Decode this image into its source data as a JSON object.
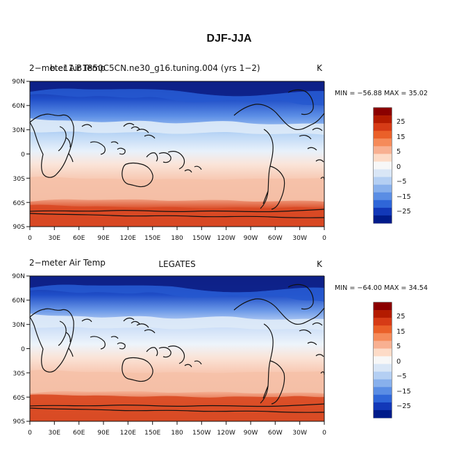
{
  "figure": {
    "title": "DJF-JJA"
  },
  "common": {
    "unit": "K",
    "lat_labels": [
      "90N",
      "60N",
      "30N",
      "0",
      "30S",
      "60S",
      "90S"
    ],
    "lon_labels": [
      "0",
      "30E",
      "60E",
      "90E",
      "120E",
      "150E",
      "180",
      "150W",
      "120W",
      "90W",
      "60W",
      "30W",
      "0"
    ],
    "colorbar_labels": [
      "25",
      "15",
      "5",
      "0",
      "−5",
      "−15",
      "−25"
    ],
    "colorbar_colors": [
      "#8b0000",
      "#b31b00",
      "#d63b16",
      "#ea6029",
      "#f58b5a",
      "#f8b091",
      "#fddbc7",
      "#f7f7f7",
      "#d9e6f6",
      "#b4cff3",
      "#88b0ec",
      "#5a8de4",
      "#2f66d8",
      "#1238b8",
      "#001b8a"
    ]
  },
  "panels": [
    {
      "left_title": "2−meter Air Temp",
      "overlap_title": "b.e11.B1850C5CN.ne30_g16.tuning.004 (yrs 1−2)",
      "center_title": "",
      "right_title": "K",
      "stats": "MIN = −56.88 MAX =  35.02"
    },
    {
      "left_title": "2−meter Air Temp",
      "overlap_title": "",
      "center_title": "LEGATES",
      "right_title": "K",
      "stats": "MIN = −64.00 MAX =  34.54"
    }
  ]
}
